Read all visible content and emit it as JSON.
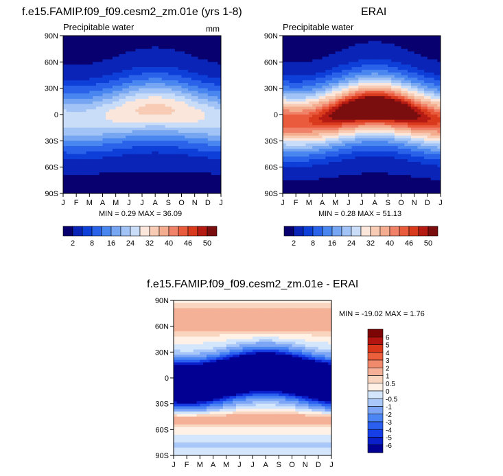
{
  "chart_data": [
    {
      "type": "heatmap",
      "title": "f.e15.FAMIP.f09_f09.cesm2_zm.01e (yrs 1-8)",
      "subtitle": "Precipitable water",
      "units": "mm",
      "stats": "MIN =   0.29 MAX =  36.09",
      "x_ticks": [
        "J",
        "F",
        "M",
        "A",
        "M",
        "J",
        "J",
        "A",
        "S",
        "O",
        "N",
        "D",
        "J"
      ],
      "y_ticks": [
        "90N",
        "60N",
        "30N",
        "0",
        "30S",
        "60S",
        "90S"
      ],
      "field": {
        "equator_peak": 28,
        "peak_month": 7,
        "seasonal_shift_deg": 6
      },
      "colorbar_labels": [
        "2",
        "8",
        "16",
        "24",
        "32",
        "40",
        "46",
        "50"
      ]
    },
    {
      "type": "heatmap",
      "title": "ERAI",
      "subtitle": "Precipitable water",
      "stats": "MIN =   0.28 MAX =  51.13",
      "x_ticks": [
        "J",
        "F",
        "M",
        "A",
        "M",
        "J",
        "J",
        "A",
        "S",
        "O",
        "N",
        "D",
        "J"
      ],
      "y_ticks": [
        "90N",
        "60N",
        "30N",
        "0",
        "30S",
        "60S",
        "90S"
      ],
      "field": {
        "equator_peak": 50,
        "peak_month": 7,
        "seasonal_shift_deg": 8
      },
      "colorbar_labels": [
        "2",
        "8",
        "16",
        "24",
        "32",
        "40",
        "46",
        "50"
      ]
    },
    {
      "type": "heatmap",
      "title": "f.e15.FAMIP.f09_f09.cesm2_zm.01e - ERAI",
      "stats": "MIN = -19.02 MAX =   1.76",
      "x_ticks": [
        "J",
        "F",
        "M",
        "A",
        "M",
        "J",
        "J",
        "A",
        "S",
        "O",
        "N",
        "D",
        "J"
      ],
      "y_ticks": [
        "90N",
        "60N",
        "30N",
        "0",
        "30S",
        "60S",
        "90S"
      ],
      "colorbar_labels": [
        "6",
        "5",
        "4",
        "3",
        "2",
        "1",
        "0.5",
        "0",
        "-0.5",
        "-1",
        "-2",
        "-3",
        "-4",
        "-5",
        "-6"
      ]
    }
  ],
  "palette": [
    "#08006e",
    "#0a24b8",
    "#0e3fd8",
    "#2a63ea",
    "#4a86f0",
    "#76a6f2",
    "#a2c3f5",
    "#c9ddf8",
    "#fbe6dc",
    "#f8cbb4",
    "#f4ac8e",
    "#f0826a",
    "#ea5a3c",
    "#d93a1d",
    "#b51b12",
    "#7a0e0e"
  ],
  "diff_palette": [
    "#010093",
    "#0a1ec9",
    "#153ee6",
    "#2a5ff0",
    "#4b84f3",
    "#7ca6f5",
    "#a9c7f8",
    "#d4e6fb",
    "#fff1e6",
    "#f9d5c0",
    "#f5b197",
    "#f18a6d",
    "#ec5f3d",
    "#d9361a",
    "#b3140f",
    "#7e0505"
  ]
}
